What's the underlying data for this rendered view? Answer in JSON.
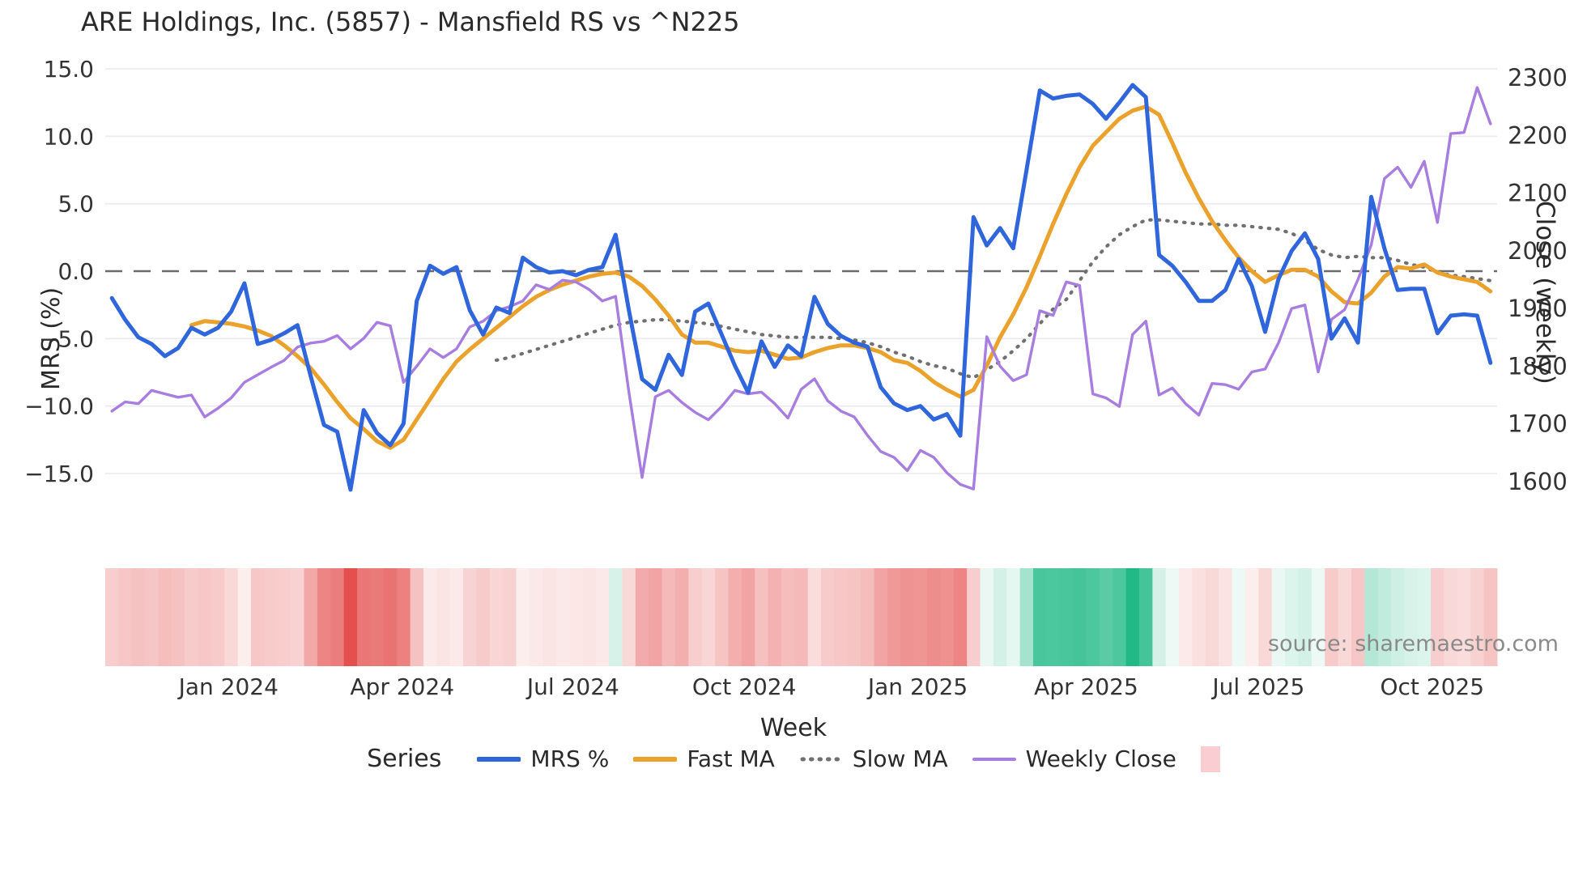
{
  "title": "ARE Holdings, Inc. (5857) - Mansfield RS vs ^N225",
  "source_note": "source: sharemaestro.com",
  "axes": {
    "left": {
      "title": "MRS (%)",
      "tick_labels": [
        "15.0",
        "10.0",
        "5.0",
        "0.0",
        "−5.0",
        "−10.0",
        "−15.0"
      ],
      "tick_values": [
        15,
        10,
        5,
        0,
        -5,
        -10,
        -15
      ]
    },
    "right": {
      "title": "Close (weekly)",
      "tick_labels": [
        "2300",
        "2200",
        "2100",
        "2000",
        "1900",
        "1800",
        "1700",
        "1600"
      ],
      "tick_values": [
        2300,
        2200,
        2100,
        2000,
        1900,
        1800,
        1700,
        1600
      ]
    },
    "x": {
      "title": "Week",
      "tick_labels": [
        "Jan 2024",
        "Apr 2024",
        "Jul 2024",
        "Oct 2024",
        "Jan 2025",
        "Apr 2025",
        "Jul 2025",
        "Oct 2025"
      ],
      "tick_weeks": [
        9.3,
        22.4,
        35.3,
        48.2,
        61.3,
        74.0,
        87.0,
        100.1
      ]
    }
  },
  "legend": {
    "heading": "Series",
    "items": [
      {
        "label": "MRS %"
      },
      {
        "label": "Fast MA"
      },
      {
        "label": "Slow MA"
      },
      {
        "label": "Weekly Close"
      }
    ],
    "square_color": "#f9cdd2"
  },
  "chart_data": {
    "type": "line",
    "title": "ARE Holdings, Inc. (5857) - Mansfield RS vs ^N225",
    "x_unit": "week_index",
    "n_weeks": 105,
    "xlabel": "Week",
    "ylabel_left": "MRS (%)",
    "ylabel_right": "Close (weekly)",
    "ylim_left": [
      -15,
      15
    ],
    "ylim_right": [
      1600,
      2300
    ],
    "grid": "horizontal gridlines every 5 MRS units, dashed line at MRS = 0",
    "legend_position": "bottom center",
    "colors": {
      "mrs": "#2f66db",
      "fast": "#eba22c",
      "slow": "#707070",
      "close": "#a87de0",
      "zero_line": "#6b6b6b",
      "grid": "#e9ebee",
      "heat_negative": "#e4504e",
      "heat_positive": "#21b986"
    },
    "series": [
      {
        "name": "MRS %",
        "axis": "left",
        "style": "solid",
        "values": [
          -2.0,
          -3.6,
          -4.9,
          -5.4,
          -6.3,
          -5.7,
          -4.2,
          -4.7,
          -4.2,
          -3.0,
          -0.9,
          -5.4,
          -5.1,
          -4.6,
          -4.0,
          -7.8,
          -11.4,
          -11.9,
          -16.2,
          -10.3,
          -12.0,
          -12.9,
          -11.3,
          -2.2,
          0.4,
          -0.2,
          0.3,
          -2.9,
          -4.7,
          -2.7,
          -3.1,
          1.0,
          0.3,
          -0.1,
          0.0,
          -0.3,
          0.1,
          0.3,
          2.7,
          -2.9,
          -8.0,
          -8.8,
          -6.2,
          -7.7,
          -3.0,
          -2.4,
          -4.7,
          -7.0,
          -9.0,
          -5.2,
          -7.1,
          -5.5,
          -6.3,
          -1.9,
          -3.9,
          -4.8,
          -5.3,
          -5.6,
          -8.6,
          -9.8,
          -10.3,
          -10.0,
          -11.0,
          -10.6,
          -12.2,
          4.0,
          1.9,
          3.2,
          1.7,
          7.5,
          13.4,
          12.8,
          13.0,
          13.1,
          12.4,
          11.3,
          12.5,
          13.8,
          12.9,
          1.2,
          0.4,
          -0.8,
          -2.2,
          -2.2,
          -1.4,
          0.9,
          -1.1,
          -4.5,
          -0.6,
          1.5,
          2.8,
          0.9,
          -5.0,
          -3.5,
          -5.3,
          5.5,
          1.7,
          -1.4,
          -1.3,
          -1.3,
          -4.6,
          -3.3,
          -3.2,
          -3.3,
          -6.8
        ]
      },
      {
        "name": "Fast MA",
        "axis": "left",
        "style": "solid",
        "values": [
          null,
          null,
          null,
          null,
          null,
          null,
          -4.0,
          -3.7,
          -3.8,
          -3.9,
          -4.1,
          -4.4,
          -4.8,
          -5.5,
          -6.3,
          -7.2,
          -8.4,
          -9.7,
          -10.9,
          -11.7,
          -12.6,
          -13.1,
          -12.5,
          -11.0,
          -9.5,
          -8.0,
          -6.7,
          -5.8,
          -5.0,
          -4.2,
          -3.4,
          -2.6,
          -1.9,
          -1.4,
          -1.0,
          -0.7,
          -0.4,
          -0.2,
          -0.1,
          -0.4,
          -1.1,
          -2.1,
          -3.3,
          -4.7,
          -5.3,
          -5.3,
          -5.6,
          -5.9,
          -6.0,
          -5.9,
          -6.2,
          -6.5,
          -6.4,
          -6.0,
          -5.7,
          -5.5,
          -5.5,
          -5.7,
          -6.0,
          -6.6,
          -6.8,
          -7.4,
          -8.2,
          -8.8,
          -9.3,
          -8.8,
          -7.0,
          -4.9,
          -3.2,
          -1.2,
          1.1,
          3.5,
          5.7,
          7.7,
          9.3,
          10.3,
          11.3,
          11.9,
          12.2,
          11.6,
          9.5,
          7.3,
          5.4,
          3.7,
          2.3,
          1.0,
          0.0,
          -0.8,
          -0.3,
          0.1,
          0.1,
          -0.4,
          -1.5,
          -2.3,
          -2.4,
          -1.6,
          -0.4,
          0.3,
          0.2,
          0.5,
          -0.1,
          -0.4,
          -0.6,
          -0.8,
          -1.5
        ]
      },
      {
        "name": "Slow MA",
        "axis": "left",
        "style": "dotted",
        "values": [
          null,
          null,
          null,
          null,
          null,
          null,
          null,
          null,
          null,
          null,
          null,
          null,
          null,
          null,
          null,
          null,
          null,
          null,
          null,
          null,
          null,
          null,
          null,
          null,
          null,
          null,
          null,
          null,
          null,
          -6.6,
          -6.4,
          -6.1,
          -5.8,
          -5.5,
          -5.2,
          -4.9,
          -4.6,
          -4.3,
          -4.0,
          -3.8,
          -3.7,
          -3.6,
          -3.6,
          -3.7,
          -3.8,
          -3.9,
          -4.1,
          -4.3,
          -4.5,
          -4.7,
          -4.8,
          -4.9,
          -4.9,
          -4.9,
          -4.9,
          -5.0,
          -5.1,
          -5.3,
          -5.6,
          -6.0,
          -6.3,
          -6.7,
          -7.0,
          -7.2,
          -7.6,
          -7.9,
          -7.3,
          -6.7,
          -5.9,
          -5.0,
          -3.9,
          -2.8,
          -2.1,
          -0.7,
          0.7,
          1.8,
          2.7,
          3.3,
          3.8,
          3.8,
          3.7,
          3.6,
          3.5,
          3.5,
          3.4,
          3.4,
          3.3,
          3.2,
          3.1,
          2.8,
          2.3,
          1.6,
          1.2,
          1.0,
          1.1,
          1.0,
          1.0,
          0.8,
          0.5,
          0.3,
          -0.1,
          -0.3,
          -0.4,
          -0.55,
          -0.7
        ]
      },
      {
        "name": "Weekly Close",
        "axis": "right",
        "style": "solid",
        "values": [
          1722,
          1738,
          1735,
          1758,
          1752,
          1746,
          1750,
          1712,
          1727,
          1745,
          1772,
          1785,
          1798,
          1810,
          1833,
          1840,
          1843,
          1853,
          1830,
          1848,
          1876,
          1870,
          1772,
          1800,
          1830,
          1815,
          1830,
          1868,
          1878,
          1896,
          1903,
          1913,
          1941,
          1933,
          1949,
          1946,
          1933,
          1913,
          1921,
          1755,
          1607,
          1747,
          1758,
          1737,
          1720,
          1707,
          1730,
          1758,
          1752,
          1755,
          1735,
          1710,
          1760,
          1778,
          1740,
          1722,
          1712,
          1680,
          1652,
          1642,
          1619,
          1654,
          1642,
          1615,
          1595,
          1587,
          1851,
          1800,
          1775,
          1785,
          1896,
          1888,
          1946,
          1940,
          1752,
          1745,
          1730,
          1855,
          1878,
          1750,
          1762,
          1735,
          1715,
          1770,
          1768,
          1760,
          1790,
          1795,
          1840,
          1900,
          1906,
          1790,
          1881,
          1898,
          1950,
          2010,
          2125,
          2145,
          2110,
          2155,
          2049,
          2203,
          2205,
          2283,
          2220
        ]
      }
    ],
    "heatmap": {
      "description": "weekly heat strip below chart, red = negative, green = positive, scale -1..1",
      "values": [
        -0.28,
        -0.32,
        -0.35,
        -0.33,
        -0.38,
        -0.35,
        -0.3,
        -0.32,
        -0.3,
        -0.22,
        -0.1,
        -0.32,
        -0.3,
        -0.28,
        -0.26,
        -0.5,
        -0.7,
        -0.74,
        -1.0,
        -0.78,
        -0.76,
        -0.8,
        -0.72,
        -0.35,
        -0.12,
        -0.15,
        -0.12,
        -0.25,
        -0.3,
        -0.24,
        -0.26,
        -0.1,
        -0.13,
        -0.15,
        -0.13,
        -0.14,
        -0.15,
        -0.13,
        0.18,
        -0.22,
        -0.48,
        -0.52,
        -0.4,
        -0.46,
        -0.28,
        -0.24,
        -0.34,
        -0.46,
        -0.52,
        -0.36,
        -0.44,
        -0.38,
        -0.4,
        -0.2,
        -0.3,
        -0.32,
        -0.34,
        -0.38,
        -0.52,
        -0.58,
        -0.62,
        -0.6,
        -0.65,
        -0.63,
        -0.7,
        -0.28,
        0.1,
        0.2,
        0.12,
        0.4,
        0.82,
        0.8,
        0.82,
        0.84,
        0.8,
        0.74,
        0.8,
        1.0,
        0.84,
        0.2,
        0.08,
        -0.12,
        -0.18,
        -0.22,
        -0.16,
        0.08,
        -0.1,
        -0.22,
        0.1,
        0.16,
        0.2,
        0.08,
        -0.3,
        -0.22,
        -0.32,
        0.34,
        0.28,
        0.22,
        0.18,
        0.16,
        -0.28,
        -0.22,
        -0.2,
        -0.26,
        -0.34
      ]
    }
  }
}
